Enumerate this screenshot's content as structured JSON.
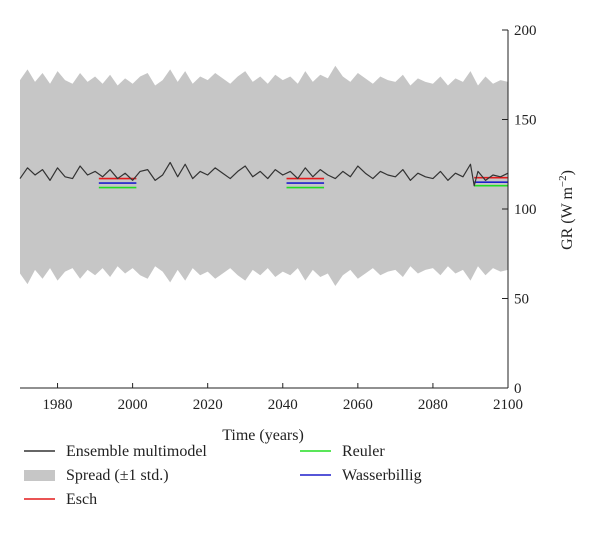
{
  "chart_data": {
    "type": "line",
    "xlabel": "Time (years)",
    "ylabel_main": "GR (W m",
    "ylabel_exp": "−2",
    "ylabel_close": ")",
    "xlim": [
      1970,
      2100
    ],
    "ylim": [
      0,
      200
    ],
    "xticks": [
      1980,
      2000,
      2020,
      2040,
      2060,
      2080,
      2100
    ],
    "yticks": [
      0,
      50,
      100,
      150,
      200
    ],
    "y_axis_side": "right",
    "grid": false,
    "legend_position": "bottom",
    "colors": {
      "ensemble": "#333333",
      "spread": "#c6c6c6",
      "esch": "#e41a1c",
      "reuler": "#22dd22",
      "wasserbillig": "#1f1fcc"
    },
    "ensemble_x": [
      1970,
      1972,
      1974,
      1976,
      1978,
      1980,
      1982,
      1984,
      1986,
      1988,
      1990,
      1992,
      1994,
      1996,
      1998,
      2000,
      2002,
      2004,
      2006,
      2008,
      2010,
      2012,
      2014,
      2016,
      2018,
      2020,
      2022,
      2024,
      2026,
      2028,
      2030,
      2032,
      2034,
      2036,
      2038,
      2040,
      2042,
      2044,
      2046,
      2048,
      2050,
      2052,
      2054,
      2056,
      2058,
      2060,
      2062,
      2064,
      2066,
      2068,
      2070,
      2072,
      2074,
      2076,
      2078,
      2080,
      2082,
      2084,
      2086,
      2088,
      2090,
      2091,
      2092,
      2094,
      2096,
      2098,
      2100
    ],
    "ensemble_y": [
      117,
      123,
      119,
      122,
      116,
      123,
      118,
      117,
      124,
      119,
      121,
      118,
      122,
      117,
      120,
      116,
      121,
      122,
      116,
      119,
      126,
      118,
      125,
      117,
      121,
      119,
      123,
      120,
      117,
      121,
      124,
      118,
      121,
      117,
      122,
      119,
      121,
      117,
      123,
      118,
      122,
      119,
      117,
      121,
      118,
      124,
      120,
      117,
      121,
      119,
      118,
      122,
      116,
      120,
      118,
      117,
      121,
      116,
      120,
      118,
      125,
      113,
      121,
      116,
      119,
      118,
      120
    ],
    "spread_x": [
      1970,
      1972,
      1974,
      1976,
      1978,
      1980,
      1982,
      1984,
      1986,
      1988,
      1990,
      1992,
      1994,
      1996,
      1998,
      2000,
      2002,
      2004,
      2006,
      2008,
      2010,
      2012,
      2014,
      2016,
      2018,
      2020,
      2022,
      2024,
      2026,
      2028,
      2030,
      2032,
      2034,
      2036,
      2038,
      2040,
      2042,
      2044,
      2046,
      2048,
      2050,
      2052,
      2054,
      2056,
      2058,
      2060,
      2062,
      2064,
      2066,
      2068,
      2070,
      2072,
      2074,
      2076,
      2078,
      2080,
      2082,
      2084,
      2086,
      2088,
      2090,
      2092,
      2094,
      2096,
      2098,
      2100
    ],
    "spread_upper": [
      172,
      178,
      171,
      176,
      170,
      177,
      172,
      170,
      176,
      171,
      174,
      170,
      175,
      169,
      173,
      170,
      174,
      176,
      169,
      172,
      178,
      171,
      177,
      170,
      174,
      172,
      176,
      173,
      170,
      174,
      177,
      171,
      174,
      170,
      175,
      172,
      174,
      170,
      177,
      171,
      175,
      173,
      180,
      174,
      171,
      176,
      173,
      170,
      174,
      172,
      171,
      175,
      169,
      173,
      171,
      170,
      174,
      169,
      173,
      171,
      177,
      169,
      174,
      170,
      172,
      171
    ],
    "spread_lower": [
      64,
      58,
      66,
      61,
      67,
      60,
      65,
      67,
      61,
      66,
      63,
      67,
      62,
      68,
      64,
      67,
      63,
      61,
      68,
      65,
      59,
      66,
      60,
      67,
      63,
      65,
      61,
      64,
      67,
      63,
      60,
      66,
      63,
      67,
      62,
      65,
      63,
      67,
      60,
      66,
      62,
      64,
      57,
      63,
      66,
      61,
      64,
      67,
      63,
      65,
      66,
      62,
      68,
      64,
      66,
      67,
      63,
      68,
      64,
      66,
      60,
      68,
      63,
      67,
      65,
      66
    ],
    "station_segments": [
      {
        "x": [
          1991,
          2001
        ],
        "esch": 117,
        "wasserbillig": 114.5,
        "reuler": 112
      },
      {
        "x": [
          2041,
          2051
        ],
        "esch": 117,
        "wasserbillig": 114.5,
        "reuler": 112
      },
      {
        "x": [
          2091,
          2101
        ],
        "esch": 117.5,
        "wasserbillig": 115,
        "reuler": 113
      }
    ],
    "legend": [
      {
        "key": "ensemble",
        "label": "Ensemble multimodel",
        "kind": "line"
      },
      {
        "key": "spread",
        "label": "Spread (±1 std.)",
        "kind": "band"
      },
      {
        "key": "esch",
        "label": "Esch",
        "kind": "line"
      },
      {
        "key": "reuler",
        "label": "Reuler",
        "kind": "line"
      },
      {
        "key": "wasserbillig",
        "label": "Wasserbillig",
        "kind": "line"
      }
    ]
  }
}
